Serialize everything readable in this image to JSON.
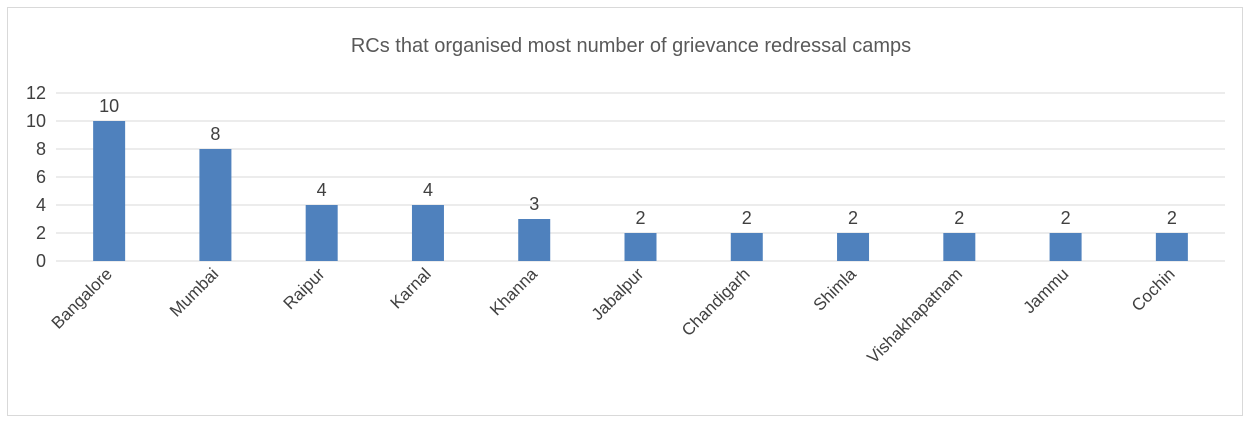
{
  "chart_data": {
    "type": "bar",
    "title": "RCs that organised most number of grievance redressal camps",
    "xlabel": "",
    "ylabel": "",
    "categories": [
      "Bangalore",
      "Mumbai",
      "Raipur",
      "Karnal",
      "Khanna",
      "Jabalpur",
      "Chandigarh",
      "Shimla",
      "Vishakhapatnam",
      "Jammu",
      "Cochin"
    ],
    "values": [
      10,
      8,
      4,
      4,
      3,
      2,
      2,
      2,
      2,
      2,
      2
    ],
    "ylim": [
      0,
      12
    ],
    "yticks": [
      0,
      2,
      4,
      6,
      8,
      10,
      12
    ],
    "data_labels": true,
    "grid": true,
    "legend": "none",
    "bar_color": "#4f81bd"
  }
}
